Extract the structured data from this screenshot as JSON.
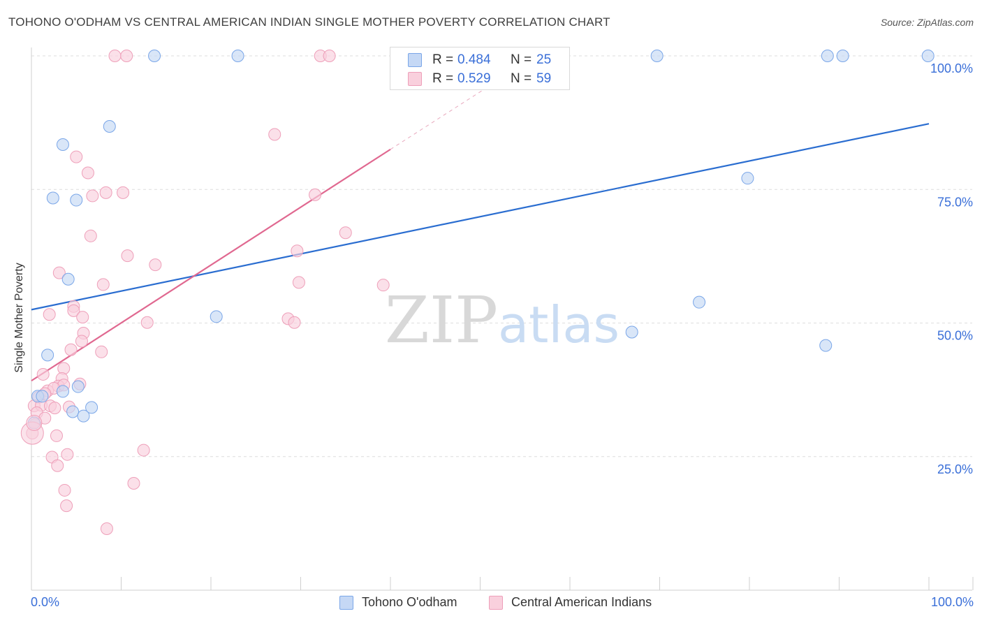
{
  "chart_data": {
    "type": "scatter",
    "title": "TOHONO O'ODHAM VS CENTRAL AMERICAN INDIAN SINGLE MOTHER POVERTY CORRELATION CHART",
    "source": "Source: ZipAtlas.com",
    "xlabel": "",
    "ylabel": "Single Mother Poverty",
    "xlim": [
      0,
      100
    ],
    "ylim": [
      0,
      100
    ],
    "x_tick_labels": {
      "left": "0.0%",
      "right": "100.0%"
    },
    "y_tick_labels": [
      {
        "value": 100,
        "label": "100.0%"
      },
      {
        "value": 75,
        "label": "75.0%"
      },
      {
        "value": 50,
        "label": "50.0%"
      },
      {
        "value": 25,
        "label": "25.0%"
      }
    ],
    "watermark": {
      "zip": "ZIP",
      "atlas": "atlas"
    },
    "series": [
      {
        "name": "Tohono O'odham",
        "color": "#7aa6e8",
        "fill": "#c5d8f5",
        "line_color": "#2a6dd0",
        "R": "0.484",
        "N": "25",
        "trend": {
          "x0": 0,
          "y0": 52.5,
          "x1": 100,
          "y1": 87.3
        },
        "points": [
          [
            0.7,
            36.3
          ],
          [
            1.2,
            36.3
          ],
          [
            3.5,
            37.2
          ],
          [
            1.8,
            44.0
          ],
          [
            4.1,
            58.2
          ],
          [
            3.5,
            83.4
          ],
          [
            2.4,
            73.4
          ],
          [
            5.0,
            73.0
          ],
          [
            8.7,
            86.8
          ],
          [
            5.2,
            38.1
          ],
          [
            4.6,
            33.4
          ],
          [
            5.8,
            32.6
          ],
          [
            6.7,
            34.2
          ],
          [
            13.7,
            100
          ],
          [
            23.0,
            100
          ],
          [
            20.6,
            51.2
          ],
          [
            69.7,
            100
          ],
          [
            88.7,
            100
          ],
          [
            90.4,
            100
          ],
          [
            99.9,
            100
          ],
          [
            79.8,
            77.1
          ],
          [
            74.4,
            53.9
          ],
          [
            66.9,
            48.3
          ],
          [
            88.5,
            45.8
          ],
          [
            0.3,
            31.3
          ]
        ]
      },
      {
        "name": "Central American Indians",
        "color": "#ee9fb9",
        "fill": "#f9d0dd",
        "line_color": "#e06890",
        "R": "0.529",
        "N": "59",
        "trend": {
          "x0": 0,
          "y0": 39.2,
          "x1": 40,
          "y1": 82.5,
          "dash_x1": 53,
          "dash_y1": 96.5
        },
        "points": [
          [
            9.3,
            100
          ],
          [
            10.6,
            100
          ],
          [
            32.2,
            100
          ],
          [
            33.2,
            100
          ],
          [
            27.1,
            85.3
          ],
          [
            5.0,
            81.1
          ],
          [
            6.3,
            78.1
          ],
          [
            8.3,
            74.4
          ],
          [
            10.2,
            74.4
          ],
          [
            6.8,
            73.8
          ],
          [
            31.6,
            74.0
          ],
          [
            6.6,
            66.3
          ],
          [
            35.0,
            66.9
          ],
          [
            10.7,
            62.6
          ],
          [
            13.8,
            60.9
          ],
          [
            29.6,
            63.5
          ],
          [
            3.1,
            59.4
          ],
          [
            8.0,
            57.2
          ],
          [
            29.8,
            57.6
          ],
          [
            39.2,
            57.1
          ],
          [
            4.7,
            53.1
          ],
          [
            4.7,
            52.3
          ],
          [
            2.0,
            51.6
          ],
          [
            5.7,
            51.1
          ],
          [
            12.9,
            50.1
          ],
          [
            28.6,
            50.8
          ],
          [
            29.3,
            50.1
          ],
          [
            5.8,
            48.1
          ],
          [
            5.6,
            46.6
          ],
          [
            4.4,
            45.0
          ],
          [
            7.8,
            44.6
          ],
          [
            3.6,
            41.5
          ],
          [
            1.3,
            40.4
          ],
          [
            3.4,
            39.6
          ],
          [
            3.0,
            38.2
          ],
          [
            3.6,
            38.4
          ],
          [
            5.4,
            38.6
          ],
          [
            1.8,
            37.3
          ],
          [
            2.5,
            37.8
          ],
          [
            0.8,
            36.1
          ],
          [
            1.5,
            36.8
          ],
          [
            0.3,
            34.5
          ],
          [
            1.1,
            34.6
          ],
          [
            2.1,
            34.5
          ],
          [
            2.6,
            34.1
          ],
          [
            4.2,
            34.3
          ],
          [
            0.6,
            33.2
          ],
          [
            1.5,
            32.2
          ],
          [
            0.4,
            31.0
          ],
          [
            0.1,
            29.4
          ],
          [
            2.8,
            28.9
          ],
          [
            12.5,
            26.2
          ],
          [
            2.3,
            24.9
          ],
          [
            4.0,
            25.4
          ],
          [
            2.9,
            23.3
          ],
          [
            11.4,
            20.0
          ],
          [
            3.7,
            18.7
          ],
          [
            3.9,
            15.8
          ],
          [
            8.4,
            11.5
          ]
        ]
      }
    ]
  }
}
